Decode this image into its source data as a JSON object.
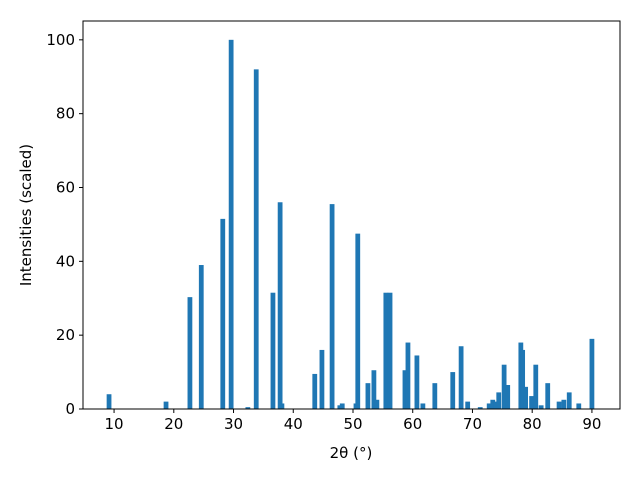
{
  "chart_data": {
    "type": "bar",
    "xlabel": "2θ (°)",
    "ylabel": "Intensities (scaled)",
    "x": [
      9.16,
      18.7,
      22.7,
      24.6,
      28.2,
      29.6,
      32.4,
      33.8,
      36.6,
      37.8,
      38.1,
      43.6,
      44.8,
      46.5,
      47.8,
      48.2,
      50.5,
      50.8,
      52.5,
      53.5,
      54.0,
      55.5,
      56.2,
      58.7,
      59.2,
      60.7,
      61.7,
      63.7,
      66.7,
      68.1,
      69.2,
      71.3,
      72.8,
      73.4,
      73.9,
      74.4,
      75.3,
      75.9,
      78.1,
      78.4,
      78.9,
      79.9,
      80.6,
      81.5,
      82.6,
      84.5,
      85.3,
      86.2,
      87.8,
      90.0
    ],
    "values": [
      4,
      2,
      30.3,
      39,
      51.5,
      100,
      0.5,
      92,
      31.5,
      56,
      1.5,
      9.5,
      16,
      55.5,
      1,
      1.5,
      1.5,
      47.5,
      7,
      10.5,
      2.5,
      31.5,
      31.5,
      10.5,
      18,
      14.5,
      1.5,
      7,
      10,
      17,
      2,
      0.5,
      1.5,
      2.5,
      2,
      4.5,
      12,
      6.5,
      18,
      16,
      6,
      3.5,
      12,
      1,
      7,
      2,
      2.5,
      4.5,
      1.5,
      19
    ],
    "color": "#1f77b4",
    "xlim": [
      4.8,
      94.7
    ],
    "xticks": [
      10,
      20,
      30,
      40,
      50,
      60,
      70,
      80,
      90
    ],
    "ylim": [
      0,
      105.1
    ],
    "yticks": [
      0,
      20,
      40,
      60,
      80,
      100
    ]
  }
}
